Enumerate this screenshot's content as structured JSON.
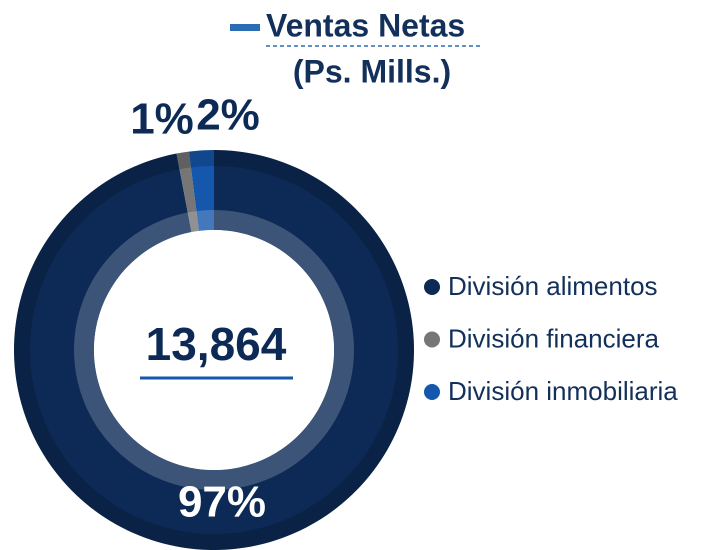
{
  "chart_data": {
    "type": "donut",
    "title": "Ventas Netas",
    "subtitle": "(Ps. Mills.)",
    "center_label": "13,864",
    "categories": [
      "División alimentos",
      "División financiera",
      "División inmobiliaria"
    ],
    "values": [
      97,
      1,
      2
    ],
    "value_labels": [
      "97%",
      "1%",
      "2%"
    ],
    "colors": [
      "#0c2a55",
      "#767676",
      "#1457ad"
    ],
    "legend": "right"
  }
}
